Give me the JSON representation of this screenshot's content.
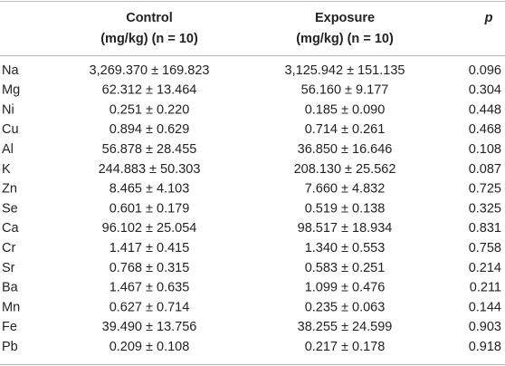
{
  "table": {
    "header": [
      [],
      [
        "Control",
        "(mg/kg) (n = 10)"
      ],
      [
        "Exposure",
        "(mg/kg) (n = 10)"
      ],
      [
        "p"
      ]
    ],
    "rows": [
      [
        "Na",
        "3,269.370 ± 169.823",
        "3,125.942 ± 151.135",
        "0.096"
      ],
      [
        "Mg",
        "62.312 ± 13.464",
        "56.160 ± 9.177",
        "0.304"
      ],
      [
        "Ni",
        "0.251 ± 0.220",
        "0.185 ± 0.090",
        "0.448"
      ],
      [
        "Cu",
        "0.894 ± 0.629",
        "0.714 ± 0.261",
        "0.468"
      ],
      [
        "Al",
        "56.878 ± 28.455",
        "36.850 ± 16.646",
        "0.108"
      ],
      [
        "K",
        "244.883 ± 50.303",
        "208.130 ± 25.562",
        "0.087"
      ],
      [
        "Zn",
        "8.465 ± 4.103",
        "7.660 ± 4.832",
        "0.725"
      ],
      [
        "Se",
        "0.601 ± 0.179",
        "0.519 ± 0.138",
        "0.325"
      ],
      [
        "Ca",
        "96.102 ± 25.054",
        "98.517 ± 18.934",
        "0.831"
      ],
      [
        "Cr",
        "1.417 ± 0.415",
        "1.340 ± 0.553",
        "0.758"
      ],
      [
        "Sr",
        "0.768 ± 0.315",
        "0.583 ± 0.251",
        "0.214"
      ],
      [
        "Ba",
        "1.467 ± 0.635",
        "1.099 ± 0.476",
        "0.211"
      ],
      [
        "Mn",
        "0.627 ± 0.714",
        "0.235 ± 0.063",
        "0.144"
      ],
      [
        "Fe",
        "39.490 ± 13.756",
        "38.255 ± 24.599",
        "0.903"
      ],
      [
        "Pb",
        "0.209 ± 0.108",
        "0.217 ± 0.178",
        "0.918"
      ]
    ]
  }
}
